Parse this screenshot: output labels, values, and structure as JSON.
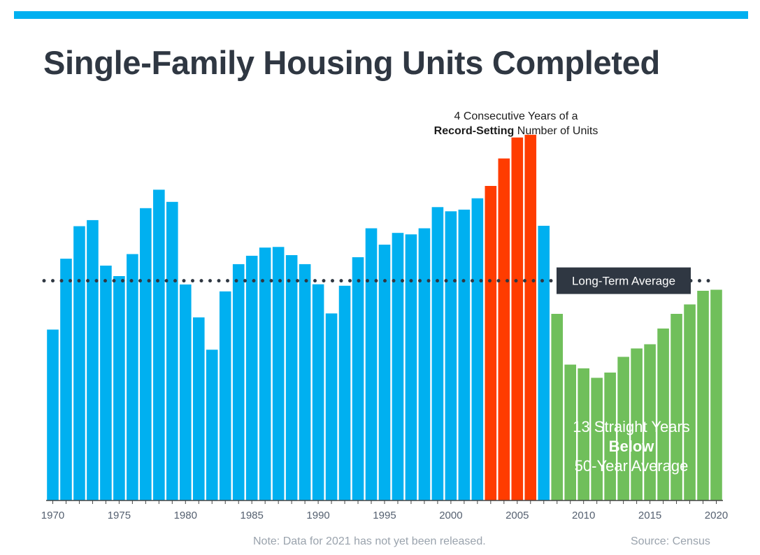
{
  "title": "Single-Family Housing Units Completed",
  "note": "Note: Data for 2021 has not yet been released.",
  "source": "Source: Census",
  "colors": {
    "accent_rule": "#00b0f0",
    "normal": "#00b0f0",
    "record": "#ff3c00",
    "below": "#70bf5b",
    "avg_label_bg": "#2f3742"
  },
  "chart_data": {
    "type": "bar",
    "title": "Single-Family Housing Units Completed",
    "xlabel": "",
    "ylabel": "",
    "grid": false,
    "x": [
      1970,
      1971,
      1972,
      1973,
      1974,
      1975,
      1976,
      1977,
      1978,
      1979,
      1980,
      1981,
      1982,
      1983,
      1984,
      1985,
      1986,
      1987,
      1988,
      1989,
      1990,
      1991,
      1992,
      1993,
      1994,
      1995,
      1996,
      1997,
      1998,
      1999,
      2000,
      2001,
      2002,
      2003,
      2004,
      2005,
      2006,
      2007,
      2008,
      2009,
      2010,
      2011,
      2012,
      2013,
      2014,
      2015,
      2016,
      2017,
      2018,
      2019,
      2020
    ],
    "values": [
      815,
      1153,
      1308,
      1337,
      1120,
      1070,
      1175,
      1394,
      1482,
      1424,
      1030,
      873,
      719,
      997,
      1127,
      1167,
      1206,
      1209,
      1170,
      1127,
      1031,
      892,
      1024,
      1160,
      1298,
      1220,
      1276,
      1269,
      1298,
      1399,
      1379,
      1387,
      1441,
      1500,
      1631,
      1731,
      1744,
      1310,
      890,
      648,
      630,
      585,
      610,
      685,
      725,
      745,
      820,
      890,
      935,
      1000,
      1005
    ],
    "highlight": {
      "record_years": [
        2003,
        2004,
        2005,
        2006
      ],
      "below_years": [
        2008,
        2009,
        2010,
        2011,
        2012,
        2013,
        2014,
        2015,
        2016,
        2017,
        2018,
        2019,
        2020
      ]
    },
    "tick_labels": [
      1970,
      1975,
      1980,
      1985,
      1990,
      1995,
      2000,
      2005,
      2010,
      2015,
      2020
    ],
    "ylim": [
      0,
      1800
    ],
    "reference_line": {
      "label": "Long-Term Average",
      "value": 1048
    },
    "annotations": {
      "record_line1": "4 Consecutive Years of a",
      "record_bold": "Record-Setting",
      "record_rest": " Number of Units",
      "below_line1": "13 Straight Years",
      "below_line2": "Below",
      "below_line3": "50-Year Average"
    }
  }
}
